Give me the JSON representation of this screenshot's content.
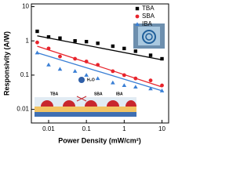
{
  "chart_data": {
    "type": "scatter",
    "x_label": "Power Density (mW/cm²)",
    "y_label": "Responsivity (A/W)",
    "log_x": true,
    "log_y": true,
    "xlim": [
      0.0035,
      15
    ],
    "ylim": [
      0.004,
      12
    ],
    "xticks": [
      0.01,
      0.1,
      1,
      10
    ],
    "yticks": [
      0.01,
      0.1,
      1,
      10
    ],
    "legend": "top-right",
    "inset_labels": [
      "TBA",
      "SBA",
      "IBA",
      "H₂O"
    ],
    "series": [
      {
        "name": "TBA",
        "color": "#000000",
        "marker": "square",
        "x": [
          0.005,
          0.01,
          0.02,
          0.05,
          0.1,
          0.2,
          0.5,
          1,
          2,
          5,
          10
        ],
        "values": [
          1.9,
          1.3,
          1.2,
          1.0,
          0.95,
          0.85,
          0.7,
          0.6,
          0.5,
          0.38,
          0.3
        ],
        "fit": {
          "x": [
            0.005,
            10
          ],
          "values": [
            1.4,
            0.28
          ]
        }
      },
      {
        "name": "SBA",
        "color": "#e8242c",
        "marker": "circle",
        "x": [
          0.005,
          0.01,
          0.02,
          0.05,
          0.1,
          0.2,
          0.5,
          1,
          2,
          5,
          10
        ],
        "values": [
          0.9,
          0.6,
          0.35,
          0.3,
          0.25,
          0.2,
          0.13,
          0.1,
          0.08,
          0.07,
          0.05
        ],
        "fit": {
          "x": [
            0.005,
            10
          ],
          "values": [
            0.7,
            0.045
          ]
        }
      },
      {
        "name": "IBA",
        "color": "#3a7fd5",
        "marker": "triangle",
        "x": [
          0.005,
          0.01,
          0.02,
          0.05,
          0.1,
          0.2,
          0.5,
          1,
          2,
          5,
          10
        ],
        "values": [
          0.45,
          0.2,
          0.15,
          0.13,
          0.1,
          0.08,
          0.06,
          0.05,
          0.045,
          0.04,
          0.035
        ],
        "fit": {
          "x": [
            0.005,
            10
          ],
          "values": [
            0.45,
            0.035
          ]
        }
      }
    ]
  }
}
